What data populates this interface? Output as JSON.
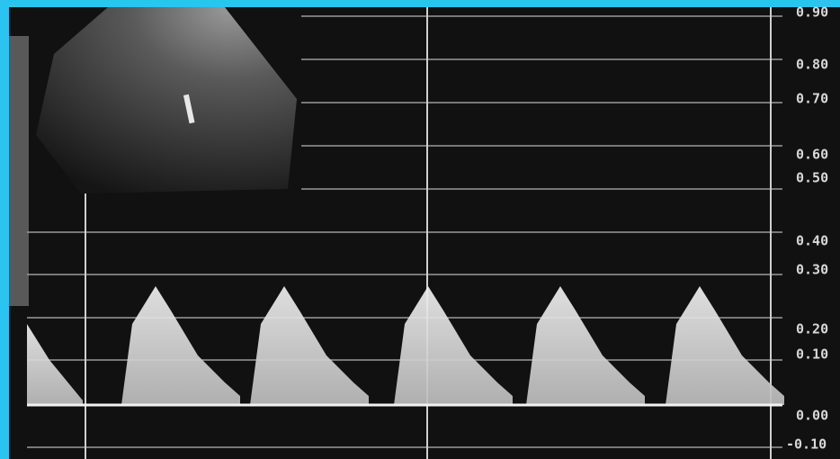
{
  "scale_labels": [
    "0.90",
    "0.80",
    "0.70",
    "0.60",
    "0.50",
    "0.40",
    "0.30",
    "0.20",
    "0.10",
    "0.00",
    "-0.10"
  ]
}
